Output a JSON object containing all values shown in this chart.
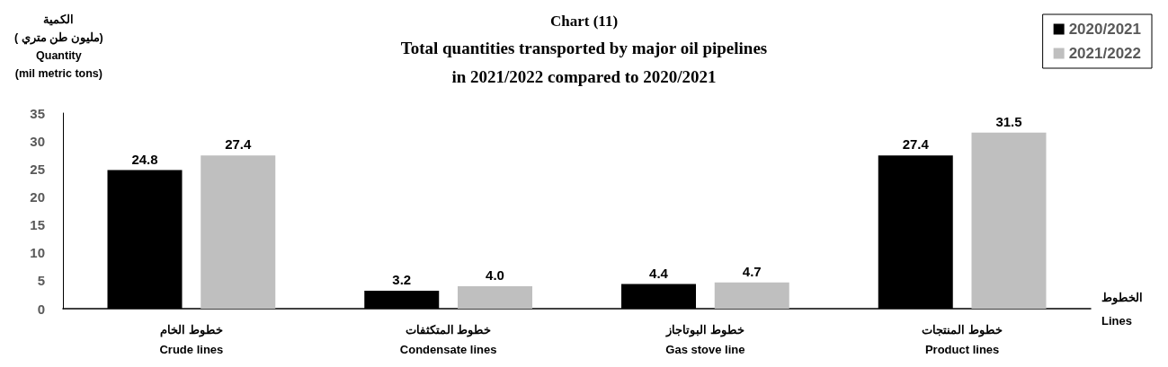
{
  "chart_data": {
    "type": "bar",
    "title": "Chart (11)",
    "subtitle": "Total quantities transported by major oil pipelines\nin 2021/2022 compared to 2020/2021",
    "ylabel": "الكمية\n( مليون طن متري)\nQuantity\n(mil metric tons)",
    "xlabel": "الخطوط\nLines",
    "categories": [
      "خطوط الخام\nCrude lines",
      "خطوط المتكثفات\nCondensate lines",
      "خطوط البوتاجاز\nGas stove line",
      "خطوط المنتجات\nProduct lines"
    ],
    "series": [
      {
        "name": "2020/2021",
        "color": "#000000",
        "values": [
          24.8,
          3.2,
          4.4,
          27.4
        ],
        "value_labels": [
          "24.8",
          "3.2",
          "4.4",
          "27.4"
        ]
      },
      {
        "name": "2021/2022",
        "color": "#bfbfbf",
        "values": [
          27.4,
          4.0,
          4.7,
          31.5
        ],
        "value_labels": [
          "27.4",
          "4.0",
          "4.7",
          "31.5"
        ]
      }
    ],
    "ylim": [
      0,
      35
    ],
    "yticks": [
      0,
      5,
      10,
      15,
      20,
      25,
      30,
      35
    ],
    "grid": false,
    "legend": "top right"
  }
}
